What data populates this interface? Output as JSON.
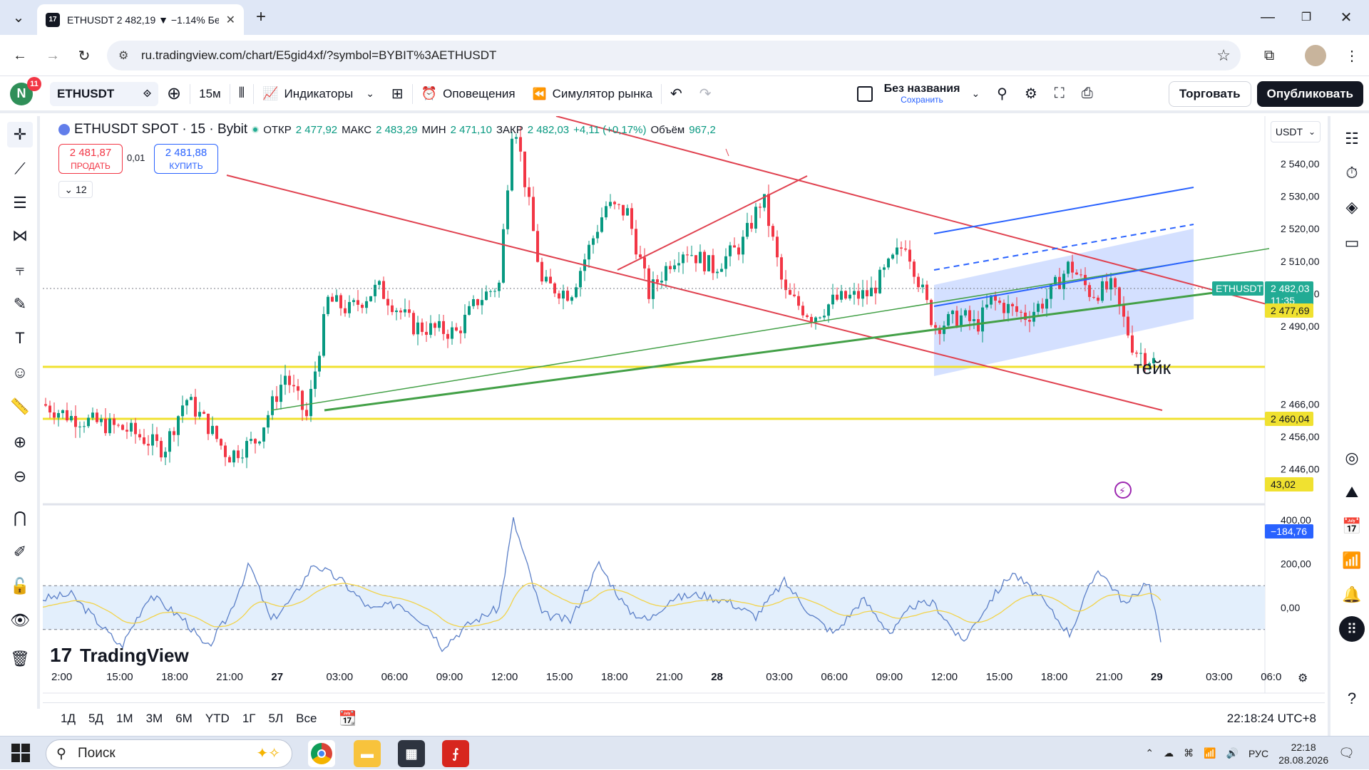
{
  "browser": {
    "tab_title": "ETHUSDT 2 482,19 ▼ −1.14% Бе",
    "url": "ru.tradingview.com/chart/E5gid4xf/?symbol=BYBIT%3AETHUSDT"
  },
  "header": {
    "avatar_letter": "N",
    "notif_count": "11",
    "symbol": "ETHUSDT",
    "interval": "15м",
    "indicators_label": "Индикаторы",
    "alerts_label": "Оповещения",
    "replay_label": "Симулятор рынка",
    "layout_name": "Без названия",
    "layout_save": "Сохранить",
    "trade_label": "Торговать",
    "publish_label": "Опубликовать"
  },
  "legend": {
    "title": "ETHUSDT SPOT · 15 · Bybit",
    "open_label": "ОТКР",
    "open": "2 477,92",
    "high_label": "МАКС",
    "high": "2 483,29",
    "low_label": "МИН",
    "low": "2 471,10",
    "close_label": "ЗАКР",
    "close": "2 482,03",
    "change": "+4,11 (+0,17%)",
    "volume_label": "Объём",
    "volume": "967,2",
    "sell_price": "2 481,87",
    "sell_label": "ПРОДАТЬ",
    "spread": "0,01",
    "buy_price": "2 481,88",
    "buy_label": "КУПИТЬ",
    "indicators_count": "12"
  },
  "currency": "USDT",
  "chart_data": {
    "type": "candlestick",
    "symbol": "ETHUSDT",
    "exchange": "Bybit",
    "interval": "15",
    "x_ticks": [
      "2:00",
      "15:00",
      "18:00",
      "21:00",
      "27",
      "03:00",
      "06:00",
      "09:00",
      "12:00",
      "15:00",
      "18:00",
      "21:00",
      "28",
      "03:00",
      "06:00",
      "09:00",
      "12:00",
      "15:00",
      "18:00",
      "21:00",
      "29",
      "03:00",
      "06:0"
    ],
    "y_ticks": [
      "2 540,00",
      "2 530,00",
      "2 520,00",
      "2 510,00",
      "2 500,00",
      "2 490,00",
      "2 466,00",
      "2 456,00",
      "2 446,00"
    ],
    "ylim": [
      2438,
      2558
    ],
    "price_label_symbol": "ETHUSDT",
    "last_price": "2 482,03",
    "countdown": "11:35",
    "hline_1": "2 477,69",
    "hline_2": "2 460,04",
    "annotation": "тейк",
    "osc_ticks": [
      "400,00",
      "200,00",
      "0,00"
    ],
    "osc_value_1": "43,02",
    "osc_value_2": "−184,76",
    "colors": {
      "up": "#089981",
      "down": "#f23645",
      "hline": "#f0e130",
      "trend": "#e0414f",
      "green_trend": "#43a047",
      "channel": "#2962ff",
      "osc": "#5b7fc7",
      "osc_signal": "#f2d34a"
    }
  },
  "watermark": "TradingView",
  "ranges": [
    "1Д",
    "5Д",
    "1М",
    "3М",
    "6М",
    "YTD",
    "1Г",
    "5Л",
    "Все"
  ],
  "clock": "22:18:24 UTC+8",
  "taskbar": {
    "search_placeholder": "Поиск",
    "lang": "РУС",
    "time": "22:18",
    "date": "28.08.2026"
  }
}
